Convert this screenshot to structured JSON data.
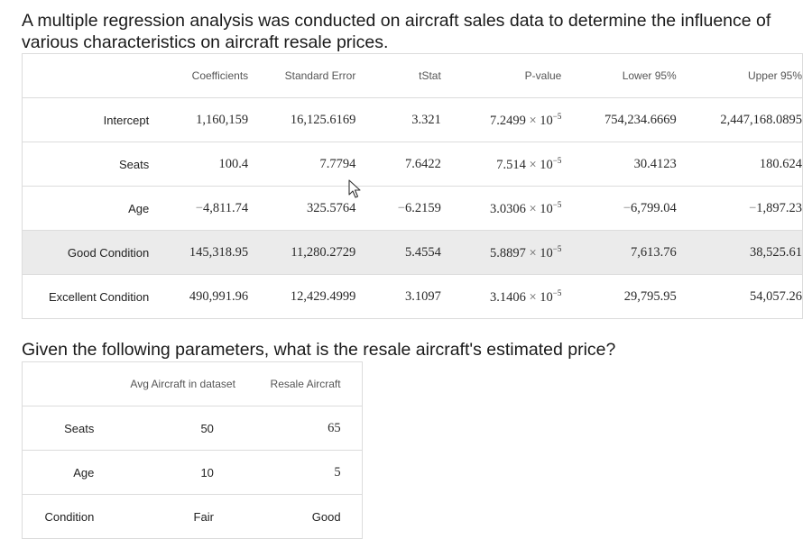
{
  "heading": "A multiple regression analysis was conducted on aircraft sales data to determine the influence of various characteristics on aircraft resale prices.",
  "question": "Given the following parameters, what is the resale aircraft's estimated price?",
  "regression": {
    "headers": [
      "",
      "Coefficients",
      "Standard Error",
      "tStat",
      "P-value",
      "Lower 95%",
      "Upper 95%"
    ],
    "rows": [
      {
        "label": "Intercept",
        "coef": "1,160,159",
        "se": "16,125.6169",
        "tstat": "3.321",
        "p_mantissa": "7.2499",
        "p_times": "×",
        "p_base": "10",
        "p_exp": "−5",
        "lower": "754,234.6669",
        "upper": "2,447,168.0895"
      },
      {
        "label": "Seats",
        "coef": "100.4",
        "se": "7.7794",
        "tstat": "7.6422",
        "p_mantissa": "7.514",
        "p_times": "×",
        "p_base": "10",
        "p_exp": "−5",
        "lower": "30.4123",
        "upper": "180.624"
      },
      {
        "label": "Age",
        "coef_sign": "−",
        "coef": "4,811.74",
        "se": "325.5764",
        "tstat_sign": "−",
        "tstat": "6.2159",
        "p_mantissa": "3.0306",
        "p_times": "×",
        "p_base": "10",
        "p_exp": "−5",
        "lower_sign": "−",
        "lower": "6,799.04",
        "upper_sign": "−",
        "upper": "1,897.23"
      },
      {
        "label": "Good Condition",
        "coef": "145,318.95",
        "se": "11,280.2729",
        "tstat": "5.4554",
        "p_mantissa": "5.8897",
        "p_times": "×",
        "p_base": "10",
        "p_exp": "−5",
        "lower": "7,613.76",
        "upper": "38,525.61"
      },
      {
        "label": "Excellent Condition",
        "coef": "490,991.96",
        "se": "12,429.4999",
        "tstat": "3.1097",
        "p_mantissa": "3.1406",
        "p_times": "×",
        "p_base": "10",
        "p_exp": "−5",
        "lower": "29,795.95",
        "upper": "54,057.26"
      }
    ]
  },
  "parameters": {
    "headers": [
      "",
      "Avg Aircraft in dataset",
      "Resale Aircraft"
    ],
    "rows": [
      {
        "label": "Seats",
        "avg": "50",
        "resale": "65"
      },
      {
        "label": "Age",
        "avg": "10",
        "resale": "5"
      },
      {
        "label": "Condition",
        "avg": "Fair",
        "resale": "Good"
      }
    ]
  }
}
